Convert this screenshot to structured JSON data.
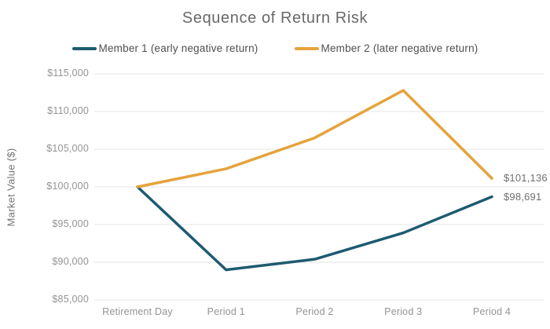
{
  "chart_data": {
    "type": "line",
    "title": "Sequence of Return Risk",
    "ylabel": "Market Value ($)",
    "xlabel": "",
    "categories": [
      "Retirement Day",
      "Period 1",
      "Period 2",
      "Period 3",
      "Period 4"
    ],
    "series": [
      {
        "name": "Member 1 (early negative return)",
        "color": "#1e5b70",
        "values": [
          100000,
          89000,
          90400,
          93900,
          98691
        ],
        "end_label": "$98,691"
      },
      {
        "name": "Member 2 (later negative return)",
        "color": "#e5a33c",
        "values": [
          100000,
          102400,
          106500,
          112800,
          101136
        ],
        "end_label": "$101,136"
      }
    ],
    "ylim": [
      85000,
      115000
    ],
    "ytick_step": 5000,
    "ytick_labels": [
      "$85,000",
      "$90,000",
      "$95,000",
      "$100,000",
      "$105,000",
      "$110,000",
      "$115,000"
    ],
    "grid": "horizontal",
    "gridline_color": "#e5e5e5",
    "legend_position": "top"
  }
}
